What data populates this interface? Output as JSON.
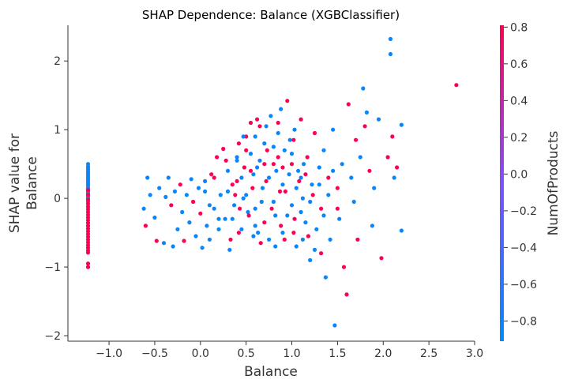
{
  "chart_data": {
    "type": "scatter",
    "title": "SHAP Dependence: Balance (XGBClassifier)",
    "xlabel": "Balance",
    "ylabel_lines": [
      "SHAP value for",
      "Balance"
    ],
    "xlim": [
      -1.45,
      3.0
    ],
    "ylim": [
      -2.08,
      2.52
    ],
    "x_ticks": [
      -1.0,
      -0.5,
      0.0,
      0.5,
      1.0,
      1.5,
      2.0,
      2.5,
      3.0
    ],
    "x_tick_labels": [
      "−1.0",
      "−0.5",
      "0.0",
      "0.5",
      "1.0",
      "1.5",
      "2.0",
      "2.5",
      "3.0"
    ],
    "y_ticks": [
      -2,
      -1,
      0,
      1,
      2
    ],
    "y_tick_labels": [
      "−2",
      "−1",
      "0",
      "1",
      "2"
    ],
    "grid": false,
    "colorbar": {
      "label": "NumOfProducts",
      "range": [
        -0.91,
        0.81
      ],
      "ticks": [
        -0.8,
        -0.6,
        -0.4,
        -0.2,
        0.0,
        0.2,
        0.4,
        0.6,
        0.8
      ],
      "tick_labels": [
        "−0.8",
        "−0.6",
        "−0.4",
        "−0.2",
        "0.0",
        "0.2",
        "0.4",
        "0.6",
        "0.8"
      ],
      "low_color": "#008afb",
      "mid_color": "#7c52ff",
      "high_color": "#ff0052"
    },
    "points": [
      [
        -1.23,
        0.5,
        -0.85
      ],
      [
        -1.23,
        0.46,
        -0.85
      ],
      [
        -1.23,
        0.43,
        -0.85
      ],
      [
        -1.23,
        0.4,
        -0.85
      ],
      [
        -1.23,
        0.37,
        -0.85
      ],
      [
        -1.23,
        0.34,
        -0.85
      ],
      [
        -1.23,
        0.31,
        -0.85
      ],
      [
        -1.23,
        0.28,
        -0.85
      ],
      [
        -1.23,
        0.25,
        -0.85
      ],
      [
        -1.23,
        0.22,
        -0.85
      ],
      [
        -1.23,
        0.19,
        -0.85
      ],
      [
        -1.23,
        0.16,
        -0.85
      ],
      [
        -1.23,
        0.13,
        -0.85
      ],
      [
        -1.23,
        0.1,
        -0.85
      ],
      [
        -1.23,
        0.07,
        -0.85
      ],
      [
        -1.23,
        0.04,
        -0.85
      ],
      [
        -1.23,
        0.01,
        -0.85
      ],
      [
        -1.23,
        -0.02,
        -0.85
      ],
      [
        -1.23,
        -0.05,
        -0.85
      ],
      [
        -1.23,
        0.12,
        0.8
      ],
      [
        -1.23,
        0.05,
        0.8
      ],
      [
        -1.23,
        -0.02,
        0.8
      ],
      [
        -1.23,
        -0.08,
        0.8
      ],
      [
        -1.23,
        -0.12,
        0.8
      ],
      [
        -1.23,
        -0.16,
        0.8
      ],
      [
        -1.23,
        -0.2,
        0.8
      ],
      [
        -1.23,
        -0.24,
        0.8
      ],
      [
        -1.23,
        -0.28,
        0.8
      ],
      [
        -1.23,
        -0.32,
        0.8
      ],
      [
        -1.23,
        -0.36,
        0.8
      ],
      [
        -1.23,
        -0.4,
        0.8
      ],
      [
        -1.23,
        -0.44,
        0.8
      ],
      [
        -1.23,
        -0.48,
        0.8
      ],
      [
        -1.23,
        -0.52,
        0.8
      ],
      [
        -1.23,
        -0.56,
        0.8
      ],
      [
        -1.23,
        -0.6,
        0.8
      ],
      [
        -1.23,
        -0.64,
        0.8
      ],
      [
        -1.23,
        -0.68,
        0.8
      ],
      [
        -1.23,
        -0.72,
        0.8
      ],
      [
        -1.23,
        -0.76,
        0.8
      ],
      [
        -1.23,
        -0.79,
        0.8
      ],
      [
        -1.23,
        -0.95,
        0.8
      ],
      [
        -1.23,
        -1.0,
        0.8
      ],
      [
        -0.62,
        -0.15,
        -0.85
      ],
      [
        -0.6,
        -0.4,
        0.8
      ],
      [
        -0.58,
        0.3,
        -0.85
      ],
      [
        -0.55,
        0.05,
        -0.85
      ],
      [
        -0.5,
        -0.28,
        -0.85
      ],
      [
        -0.48,
        -0.62,
        0.8
      ],
      [
        -0.45,
        0.15,
        -0.85
      ],
      [
        -0.4,
        -0.65,
        -0.85
      ],
      [
        -0.38,
        0.02,
        -0.85
      ],
      [
        -0.35,
        0.3,
        -0.85
      ],
      [
        -0.32,
        -0.1,
        0.8
      ],
      [
        -0.3,
        -0.7,
        -0.85
      ],
      [
        -0.28,
        0.1,
        -0.85
      ],
      [
        -0.25,
        -0.45,
        -0.85
      ],
      [
        -0.22,
        0.2,
        0.8
      ],
      [
        -0.2,
        -0.2,
        -0.85
      ],
      [
        -0.18,
        -0.62,
        0.8
      ],
      [
        -0.15,
        0.05,
        -0.85
      ],
      [
        -0.12,
        -0.35,
        -0.85
      ],
      [
        -0.1,
        0.28,
        -0.85
      ],
      [
        -0.08,
        -0.05,
        0.8
      ],
      [
        -0.05,
        -0.55,
        -0.85
      ],
      [
        -0.02,
        0.15,
        -0.85
      ],
      [
        0.0,
        -0.22,
        0.8
      ],
      [
        0.02,
        -0.72,
        -0.85
      ],
      [
        0.05,
        0.1,
        -0.85
      ],
      [
        0.07,
        -0.4,
        -0.85
      ],
      [
        0.1,
        -0.6,
        -0.85
      ],
      [
        0.12,
        0.35,
        0.8
      ],
      [
        0.15,
        -0.15,
        -0.85
      ],
      [
        0.18,
        0.6,
        0.8
      ],
      [
        0.2,
        -0.45,
        -0.85
      ],
      [
        0.22,
        0.05,
        -0.85
      ],
      [
        0.25,
        0.72,
        0.8
      ],
      [
        0.27,
        -0.3,
        -0.85
      ],
      [
        0.3,
        0.4,
        -0.85
      ],
      [
        0.32,
        -0.75,
        -0.85
      ],
      [
        0.35,
        0.2,
        0.8
      ],
      [
        0.37,
        -0.1,
        -0.85
      ],
      [
        0.4,
        0.55,
        -0.85
      ],
      [
        0.42,
        -0.5,
        0.8
      ],
      [
        0.45,
        0.3,
        -0.85
      ],
      [
        0.47,
        0.0,
        -0.85
      ],
      [
        0.5,
        0.9,
        0.8
      ],
      [
        0.52,
        -0.2,
        -0.85
      ],
      [
        0.55,
        0.65,
        -0.85
      ],
      [
        0.57,
        0.15,
        0.8
      ],
      [
        0.6,
        -0.4,
        -0.85
      ],
      [
        0.62,
        0.45,
        -0.85
      ],
      [
        0.65,
        1.05,
        0.8
      ],
      [
        0.67,
        -0.05,
        -0.85
      ],
      [
        0.7,
        0.8,
        -0.85
      ],
      [
        0.72,
        0.25,
        0.8
      ],
      [
        0.75,
        -0.6,
        -0.85
      ],
      [
        0.77,
        1.2,
        -0.85
      ],
      [
        0.8,
        0.5,
        0.8
      ],
      [
        0.82,
        -0.25,
        -0.85
      ],
      [
        0.85,
        0.95,
        -0.85
      ],
      [
        0.87,
        0.1,
        0.8
      ],
      [
        0.9,
        -0.5,
        -0.85
      ],
      [
        0.92,
        0.7,
        -0.85
      ],
      [
        0.95,
        1.42,
        0.8
      ],
      [
        0.97,
        0.35,
        -0.85
      ],
      [
        1.0,
        -0.1,
        -0.85
      ],
      [
        1.02,
        0.85,
        0.8
      ],
      [
        1.05,
        -0.7,
        -0.85
      ],
      [
        1.07,
        0.4,
        -0.85
      ],
      [
        1.1,
        1.15,
        0.8
      ],
      [
        1.12,
        0.0,
        -0.85
      ],
      [
        1.15,
        -0.35,
        -0.85
      ],
      [
        1.17,
        0.6,
        0.8
      ],
      [
        1.2,
        -0.9,
        -0.85
      ],
      [
        1.22,
        0.2,
        -0.85
      ],
      [
        1.25,
        0.95,
        0.8
      ],
      [
        1.27,
        -0.45,
        -0.85
      ],
      [
        1.3,
        0.45,
        -0.85
      ],
      [
        1.32,
        -0.15,
        0.8
      ],
      [
        1.35,
        0.7,
        -0.85
      ],
      [
        1.37,
        -1.15,
        -0.85
      ],
      [
        1.4,
        0.3,
        0.8
      ],
      [
        1.42,
        -0.6,
        -0.85
      ],
      [
        1.45,
        1.0,
        -0.85
      ],
      [
        1.47,
        -1.85,
        -0.85
      ],
      [
        1.5,
        0.15,
        0.8
      ],
      [
        1.52,
        -0.3,
        -0.85
      ],
      [
        1.55,
        0.5,
        -0.85
      ],
      [
        1.57,
        -1.0,
        0.8
      ],
      [
        1.6,
        -1.4,
        0.8
      ],
      [
        1.62,
        1.37,
        0.8
      ],
      [
        1.65,
        0.3,
        -0.85
      ],
      [
        1.68,
        -0.05,
        -0.85
      ],
      [
        1.7,
        0.85,
        0.8
      ],
      [
        1.72,
        -0.6,
        0.8
      ],
      [
        1.75,
        0.6,
        -0.85
      ],
      [
        1.78,
        1.6,
        -0.85
      ],
      [
        1.8,
        1.05,
        0.8
      ],
      [
        1.82,
        1.25,
        -0.85
      ],
      [
        1.85,
        0.4,
        0.8
      ],
      [
        1.88,
        -0.4,
        -0.85
      ],
      [
        1.9,
        0.15,
        -0.85
      ],
      [
        1.95,
        1.15,
        -0.85
      ],
      [
        1.98,
        -0.87,
        0.8
      ],
      [
        2.05,
        0.6,
        0.8
      ],
      [
        2.08,
        2.32,
        -0.85
      ],
      [
        2.08,
        2.1,
        -0.85
      ],
      [
        2.1,
        0.9,
        0.8
      ],
      [
        2.12,
        0.3,
        -0.85
      ],
      [
        2.15,
        0.45,
        0.8
      ],
      [
        2.2,
        1.07,
        -0.85
      ],
      [
        2.2,
        -0.47,
        -0.85
      ],
      [
        2.8,
        1.65,
        0.8
      ],
      [
        0.3,
        0.1,
        -0.85
      ],
      [
        0.35,
        -0.3,
        -0.85
      ],
      [
        0.4,
        0.25,
        0.8
      ],
      [
        0.45,
        -0.45,
        -0.85
      ],
      [
        0.5,
        0.05,
        -0.85
      ],
      [
        0.55,
        0.4,
        0.8
      ],
      [
        0.6,
        -0.15,
        -0.85
      ],
      [
        0.65,
        0.55,
        -0.85
      ],
      [
        0.7,
        -0.35,
        0.8
      ],
      [
        0.75,
        0.3,
        -0.85
      ],
      [
        0.8,
        -0.05,
        -0.85
      ],
      [
        0.85,
        0.6,
        0.8
      ],
      [
        0.9,
        0.2,
        -0.85
      ],
      [
        0.95,
        -0.25,
        -0.85
      ],
      [
        1.0,
        0.5,
        0.8
      ],
      [
        1.05,
        0.15,
        -0.85
      ],
      [
        1.1,
        -0.2,
        -0.85
      ],
      [
        1.15,
        0.35,
        0.8
      ],
      [
        1.2,
        -0.05,
        -0.85
      ],
      [
        0.4,
        0.6,
        -0.85
      ],
      [
        0.5,
        0.7,
        0.8
      ],
      [
        0.6,
        0.9,
        -0.85
      ],
      [
        0.7,
        0.5,
        0.8
      ],
      [
        0.8,
        0.75,
        -0.85
      ],
      [
        0.9,
        0.45,
        0.8
      ],
      [
        1.0,
        0.65,
        -0.85
      ],
      [
        1.1,
        0.3,
        -0.85
      ],
      [
        0.28,
        0.55,
        0.8
      ],
      [
        0.33,
        -0.6,
        0.8
      ],
      [
        0.38,
        0.05,
        0.8
      ],
      [
        0.43,
        -0.15,
        0.8
      ],
      [
        0.48,
        0.45,
        0.8
      ],
      [
        0.53,
        -0.25,
        0.8
      ],
      [
        0.58,
        0.35,
        -0.85
      ],
      [
        0.63,
        -0.5,
        -0.85
      ],
      [
        0.68,
        0.15,
        -0.85
      ],
      [
        0.73,
        0.7,
        0.8
      ],
      [
        0.78,
        -0.15,
        0.8
      ],
      [
        0.83,
        0.4,
        -0.85
      ],
      [
        0.88,
        -0.4,
        0.8
      ],
      [
        0.93,
        0.1,
        0.8
      ],
      [
        0.98,
        0.85,
        -0.85
      ],
      [
        1.03,
        -0.3,
        0.8
      ],
      [
        1.08,
        0.25,
        0.8
      ],
      [
        1.13,
        0.5,
        -0.85
      ],
      [
        1.18,
        -0.55,
        0.8
      ],
      [
        1.23,
        0.05,
        0.8
      ],
      [
        0.15,
        0.3,
        0.8
      ],
      [
        0.2,
        -0.3,
        -0.85
      ],
      [
        0.1,
        -0.1,
        -0.85
      ],
      [
        0.05,
        0.25,
        -0.85
      ],
      [
        1.3,
        0.2,
        -0.85
      ],
      [
        1.35,
        -0.25,
        -0.85
      ],
      [
        1.4,
        0.05,
        -0.85
      ],
      [
        1.45,
        0.4,
        -0.85
      ],
      [
        1.5,
        -0.15,
        0.8
      ],
      [
        0.55,
        1.1,
        0.8
      ],
      [
        0.62,
        1.15,
        0.8
      ],
      [
        0.72,
        1.05,
        -0.85
      ],
      [
        0.85,
        1.1,
        0.8
      ],
      [
        0.88,
        1.3,
        -0.85
      ],
      [
        0.58,
        -0.55,
        -0.85
      ],
      [
        0.66,
        -0.65,
        0.8
      ],
      [
        0.82,
        -0.7,
        -0.85
      ],
      [
        0.92,
        -0.6,
        0.8
      ],
      [
        1.02,
        -0.5,
        0.8
      ],
      [
        1.12,
        -0.6,
        -0.85
      ],
      [
        1.25,
        -0.75,
        -0.85
      ],
      [
        1.32,
        -0.8,
        0.8
      ],
      [
        0.42,
        0.8,
        0.8
      ],
      [
        0.47,
        0.9,
        -0.85
      ],
      [
        1.03,
        1.0,
        -0.85
      ]
    ]
  }
}
